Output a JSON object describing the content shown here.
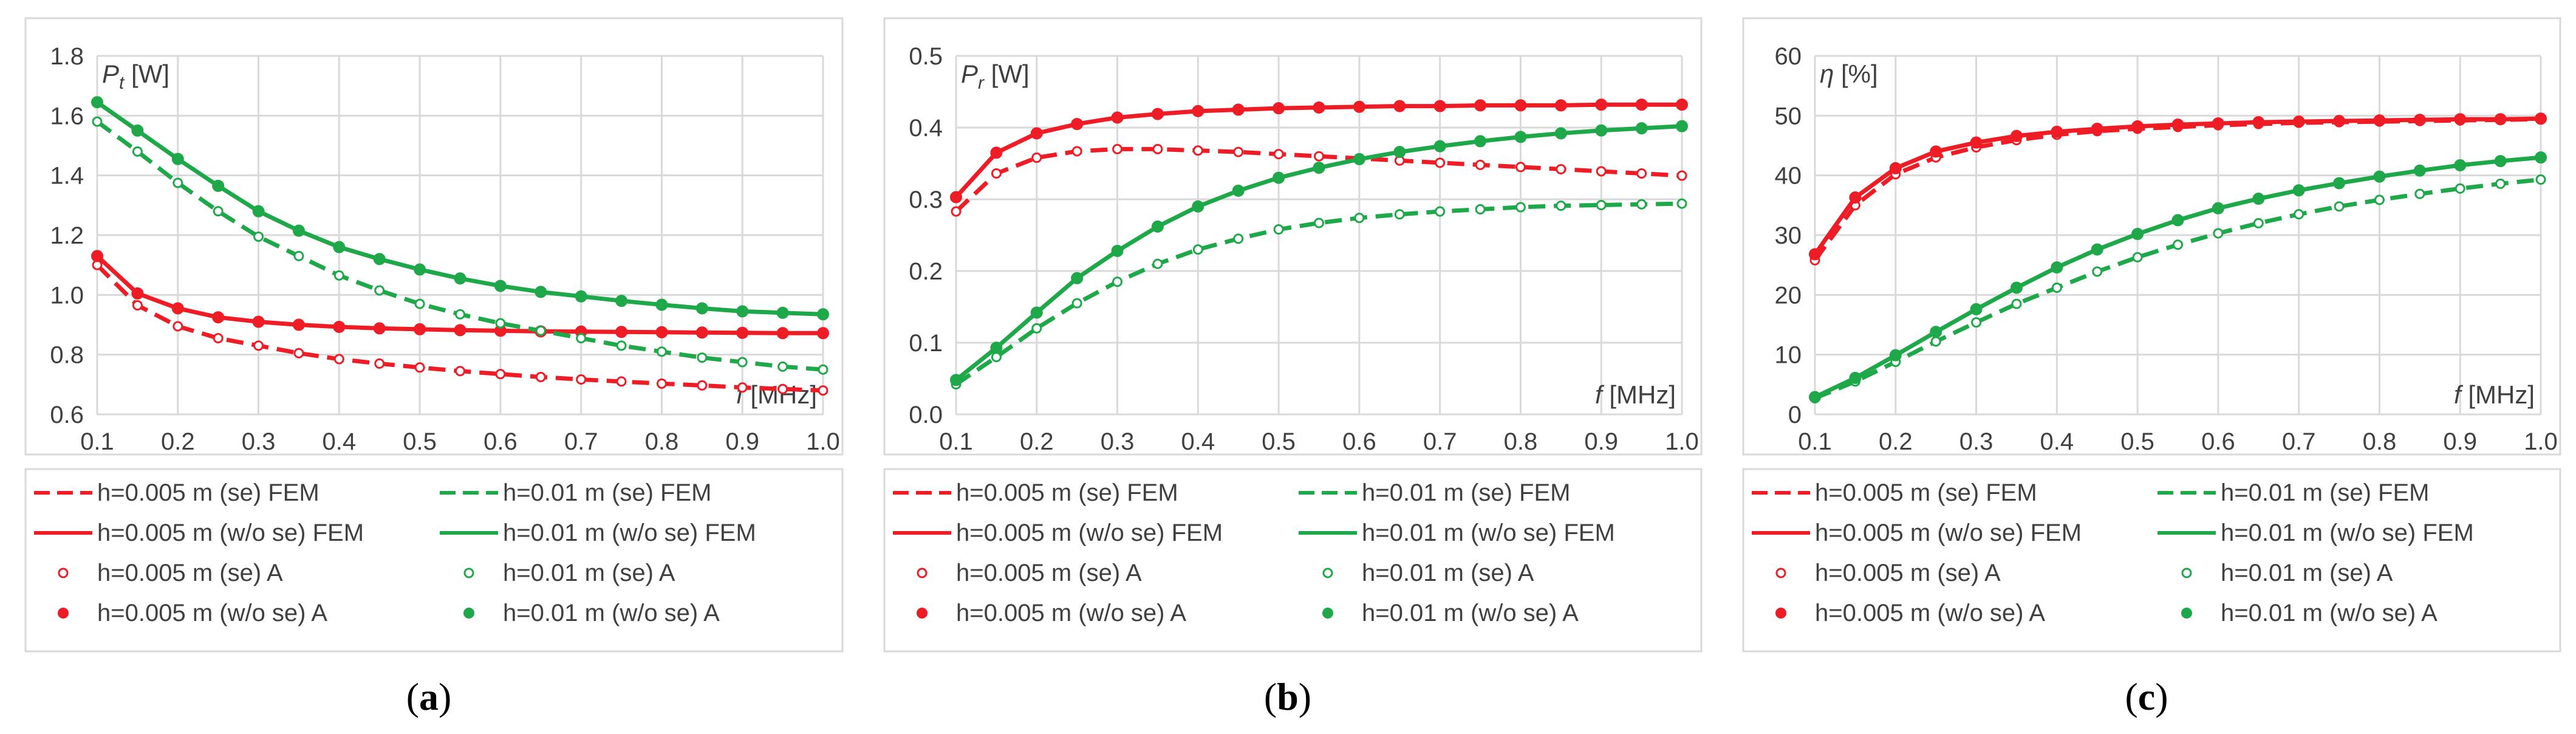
{
  "colors": {
    "red": "#ee1c24",
    "green": "#1ea84a",
    "grid": "#d9d9d9",
    "frame": "#d9d9d9",
    "text": "#404040"
  },
  "legend": {
    "entries": [
      {
        "label": "h=0.005 m (se) FEM",
        "color": "#ee1c24",
        "style": "dashed"
      },
      {
        "label": "h=0.01 m (se) FEM",
        "color": "#1ea84a",
        "style": "dashed"
      },
      {
        "label": "h=0.005 m (w/o se) FEM",
        "color": "#ee1c24",
        "style": "solid"
      },
      {
        "label": "h=0.01 m (w/o se) FEM",
        "color": "#1ea84a",
        "style": "solid"
      },
      {
        "label": "h=0.005 m (se) A",
        "color": "#ee1c24",
        "style": "open"
      },
      {
        "label": "h=0.01 m (se) A",
        "color": "#1ea84a",
        "style": "open"
      },
      {
        "label": "h=0.005 m (w/o se) A",
        "color": "#ee1c24",
        "style": "filled"
      },
      {
        "label": "h=0.01 m (w/o se) A",
        "color": "#1ea84a",
        "style": "filled"
      }
    ]
  },
  "chart_data": [
    {
      "type": "line",
      "caption_letter": "a",
      "ylabel_sym": "P",
      "ylabel_sub": "t",
      "ylabel_unit": " [W]",
      "xlabel_sym": "f",
      "xlabel_unit": " [MHz]",
      "ylim": [
        0.6,
        1.8
      ],
      "yticks": [
        0.6,
        0.8,
        1.0,
        1.2,
        1.4,
        1.6,
        1.8
      ],
      "ydec": 1,
      "xlim": [
        0.1,
        1.0
      ],
      "xticks": [
        0.1,
        0.2,
        0.3,
        0.4,
        0.5,
        0.6,
        0.7,
        0.8,
        0.9,
        1.0
      ],
      "x": [
        0.1,
        0.15,
        0.2,
        0.25,
        0.3,
        0.35,
        0.4,
        0.45,
        0.5,
        0.55,
        0.6,
        0.65,
        0.7,
        0.75,
        0.8,
        0.85,
        0.9,
        0.95,
        1.0
      ],
      "series": [
        {
          "name": "h=0.005 m (se)",
          "color": "#ee1c24",
          "dashed": true,
          "filled": false,
          "values": [
            1.1,
            0.965,
            0.895,
            0.855,
            0.83,
            0.805,
            0.785,
            0.77,
            0.757,
            0.745,
            0.735,
            0.725,
            0.717,
            0.71,
            0.703,
            0.697,
            0.69,
            0.685,
            0.68
          ]
        },
        {
          "name": "h=0.005 m (w/o se)",
          "color": "#ee1c24",
          "dashed": false,
          "filled": true,
          "values": [
            1.13,
            1.005,
            0.955,
            0.925,
            0.91,
            0.9,
            0.893,
            0.888,
            0.885,
            0.882,
            0.88,
            0.878,
            0.877,
            0.876,
            0.875,
            0.874,
            0.873,
            0.872,
            0.872
          ]
        },
        {
          "name": "h=0.01 m (se)",
          "color": "#1ea84a",
          "dashed": true,
          "filled": false,
          "values": [
            1.58,
            1.48,
            1.375,
            1.28,
            1.195,
            1.13,
            1.065,
            1.015,
            0.97,
            0.935,
            0.905,
            0.88,
            0.855,
            0.83,
            0.81,
            0.79,
            0.775,
            0.76,
            0.75
          ]
        },
        {
          "name": "h=0.01 m (w/o se)",
          "color": "#1ea84a",
          "dashed": false,
          "filled": true,
          "values": [
            1.645,
            1.55,
            1.455,
            1.365,
            1.28,
            1.215,
            1.16,
            1.12,
            1.085,
            1.055,
            1.03,
            1.01,
            0.995,
            0.98,
            0.967,
            0.955,
            0.945,
            0.94,
            0.935
          ]
        }
      ]
    },
    {
      "type": "line",
      "caption_letter": "b",
      "ylabel_sym": "P",
      "ylabel_sub": "r",
      "ylabel_unit": " [W]",
      "xlabel_sym": "f",
      "xlabel_unit": " [MHz]",
      "ylim": [
        0.0,
        0.5
      ],
      "yticks": [
        0.0,
        0.1,
        0.2,
        0.3,
        0.4,
        0.5
      ],
      "ydec": 1,
      "xlim": [
        0.1,
        1.0
      ],
      "xticks": [
        0.1,
        0.2,
        0.3,
        0.4,
        0.5,
        0.6,
        0.7,
        0.8,
        0.9,
        1.0
      ],
      "x": [
        0.1,
        0.15,
        0.2,
        0.25,
        0.3,
        0.35,
        0.4,
        0.45,
        0.5,
        0.55,
        0.6,
        0.65,
        0.7,
        0.75,
        0.8,
        0.85,
        0.9,
        0.95,
        1.0
      ],
      "series": [
        {
          "name": "h=0.005 m (se)",
          "color": "#ee1c24",
          "dashed": true,
          "filled": false,
          "values": [
            0.283,
            0.336,
            0.358,
            0.367,
            0.37,
            0.37,
            0.368,
            0.366,
            0.363,
            0.36,
            0.357,
            0.354,
            0.351,
            0.348,
            0.345,
            0.342,
            0.339,
            0.336,
            0.333
          ]
        },
        {
          "name": "h=0.005 m (w/o se)",
          "color": "#ee1c24",
          "dashed": false,
          "filled": true,
          "values": [
            0.303,
            0.365,
            0.392,
            0.405,
            0.414,
            0.419,
            0.423,
            0.425,
            0.427,
            0.428,
            0.429,
            0.43,
            0.43,
            0.431,
            0.431,
            0.431,
            0.432,
            0.432,
            0.432
          ]
        },
        {
          "name": "h=0.01 m (se)",
          "color": "#1ea84a",
          "dashed": true,
          "filled": false,
          "values": [
            0.042,
            0.08,
            0.12,
            0.155,
            0.185,
            0.21,
            0.23,
            0.245,
            0.258,
            0.267,
            0.274,
            0.279,
            0.283,
            0.286,
            0.289,
            0.291,
            0.292,
            0.293,
            0.294
          ]
        },
        {
          "name": "h=0.01 m (w/o se)",
          "color": "#1ea84a",
          "dashed": false,
          "filled": true,
          "values": [
            0.048,
            0.093,
            0.142,
            0.19,
            0.228,
            0.262,
            0.29,
            0.312,
            0.33,
            0.344,
            0.356,
            0.366,
            0.374,
            0.381,
            0.387,
            0.392,
            0.396,
            0.399,
            0.402
          ]
        }
      ]
    },
    {
      "type": "line",
      "caption_letter": "c",
      "ylabel_sym": "η",
      "ylabel_sub": "",
      "ylabel_unit": " [%]",
      "xlabel_sym": "f",
      "xlabel_unit": " [MHz]",
      "ylim": [
        0,
        60
      ],
      "yticks": [
        0,
        10,
        20,
        30,
        40,
        50,
        60
      ],
      "ydec": 0,
      "xlim": [
        0.1,
        1.0
      ],
      "xticks": [
        0.1,
        0.2,
        0.3,
        0.4,
        0.5,
        0.6,
        0.7,
        0.8,
        0.9,
        1.0
      ],
      "x": [
        0.1,
        0.15,
        0.2,
        0.25,
        0.3,
        0.35,
        0.4,
        0.45,
        0.5,
        0.55,
        0.6,
        0.65,
        0.7,
        0.75,
        0.8,
        0.85,
        0.9,
        0.95,
        1.0
      ],
      "series": [
        {
          "name": "h=0.005 m (se)",
          "color": "#ee1c24",
          "dashed": true,
          "filled": false,
          "values": [
            25.8,
            35.0,
            40.2,
            43.0,
            44.7,
            45.9,
            46.8,
            47.4,
            47.8,
            48.1,
            48.4,
            48.6,
            48.8,
            48.9,
            49.0,
            49.1,
            49.2,
            49.3,
            49.4
          ]
        },
        {
          "name": "h=0.005 m (w/o se)",
          "color": "#ee1c24",
          "dashed": false,
          "filled": true,
          "values": [
            26.8,
            36.3,
            41.2,
            44.0,
            45.5,
            46.6,
            47.3,
            47.8,
            48.2,
            48.5,
            48.7,
            48.9,
            49.0,
            49.1,
            49.2,
            49.3,
            49.4,
            49.4,
            49.5
          ]
        },
        {
          "name": "h=0.01 m (se)",
          "color": "#1ea84a",
          "dashed": true,
          "filled": false,
          "values": [
            2.7,
            5.5,
            8.8,
            12.2,
            15.4,
            18.5,
            21.2,
            23.9,
            26.3,
            28.4,
            30.3,
            32.0,
            33.5,
            34.8,
            35.9,
            36.9,
            37.8,
            38.6,
            39.3
          ]
        },
        {
          "name": "h=0.01 m (w/o se)",
          "color": "#1ea84a",
          "dashed": false,
          "filled": true,
          "values": [
            2.9,
            6.1,
            9.9,
            13.8,
            17.6,
            21.2,
            24.6,
            27.6,
            30.2,
            32.5,
            34.5,
            36.1,
            37.5,
            38.7,
            39.8,
            40.8,
            41.7,
            42.4,
            43.0
          ]
        }
      ]
    }
  ]
}
